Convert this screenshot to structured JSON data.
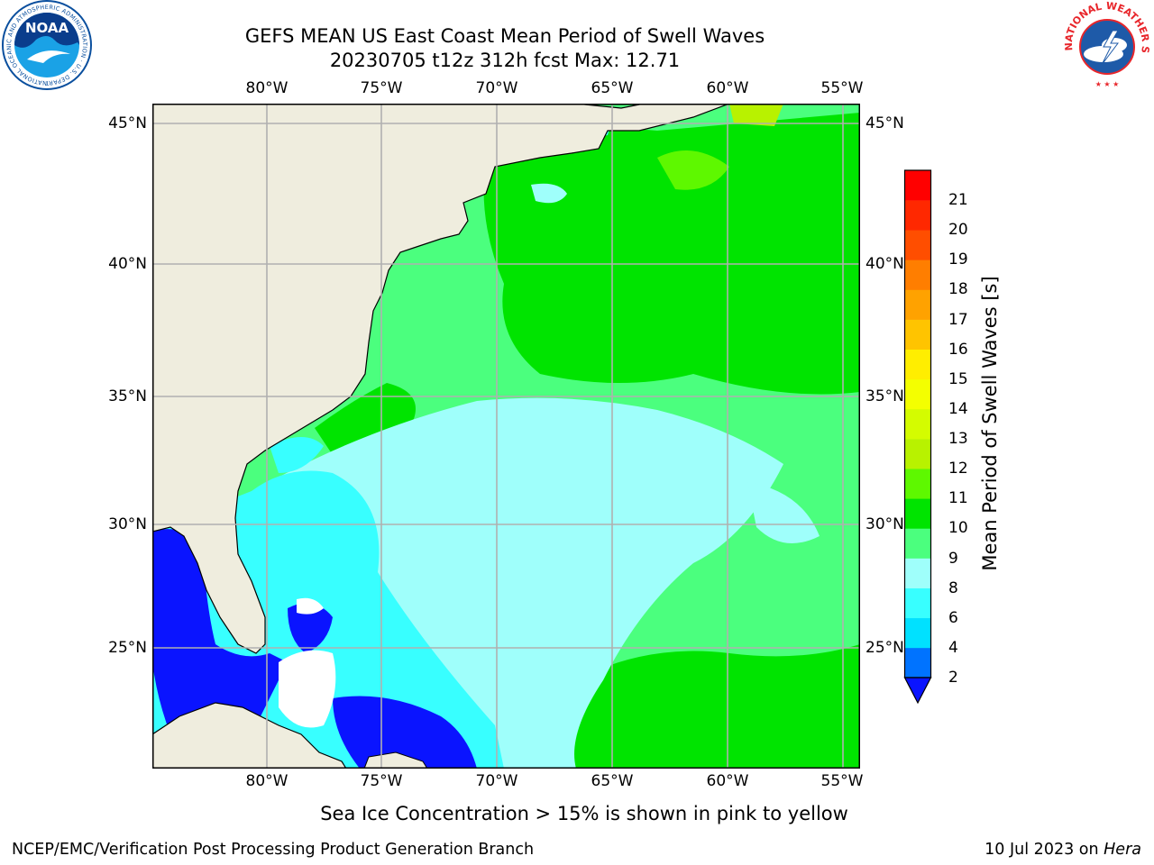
{
  "title": {
    "line1": "GEFS MEAN US East Coast Mean Period of Swell Waves",
    "line2": "20230705 t12z 312h fcst   Max: 12.71"
  },
  "logos": {
    "noaa": {
      "text": "NOAA",
      "ring_text": "NATIONAL OCEANIC AND ATMOSPHERIC ADMINISTRATION · U.S. DEPARTMENT OF COMMERCE",
      "colors": [
        "#0a4f9e",
        "#ffffff",
        "#1fa0e0"
      ]
    },
    "nws": {
      "ring_text": "NATIONAL WEATHER SERVICE",
      "colors": [
        "#e8262b",
        "#1e5aa8",
        "#ffffff"
      ]
    }
  },
  "map": {
    "lon_labels": [
      "80°W",
      "75°W",
      "70°W",
      "65°W",
      "60°W",
      "55°W"
    ],
    "lat_labels": [
      "45°N",
      "40°N",
      "35°N",
      "30°N",
      "25°N"
    ],
    "grid": true,
    "land_color": "#efedde",
    "coastline_color": "#000000"
  },
  "colorbar": {
    "label": "Mean Period of Swell Waves [s]",
    "ticks": [
      "2",
      "4",
      "6",
      "8",
      "9",
      "10",
      "11",
      "12",
      "13",
      "14",
      "15",
      "16",
      "17",
      "18",
      "19",
      "20",
      "21"
    ],
    "colors": [
      "#0073ff",
      "#00e1ff",
      "#38ffff",
      "#9ffffb",
      "#4bff7e",
      "#00e400",
      "#5ef800",
      "#b8f200",
      "#d4fc00",
      "#f4ff00",
      "#ffee00",
      "#ffc400",
      "#ffa200",
      "#ff7e00",
      "#ff4e00",
      "#ff2800",
      "#ff0000"
    ],
    "extend_color": "#0a14ff"
  },
  "note": "Sea Ice Concentration > 15% is shown in pink to yellow",
  "footer": {
    "left": "NCEP/EMC/Verification Post Processing Product Generation Branch",
    "date": "10 Jul 2023 on ",
    "machine": "Hera"
  }
}
